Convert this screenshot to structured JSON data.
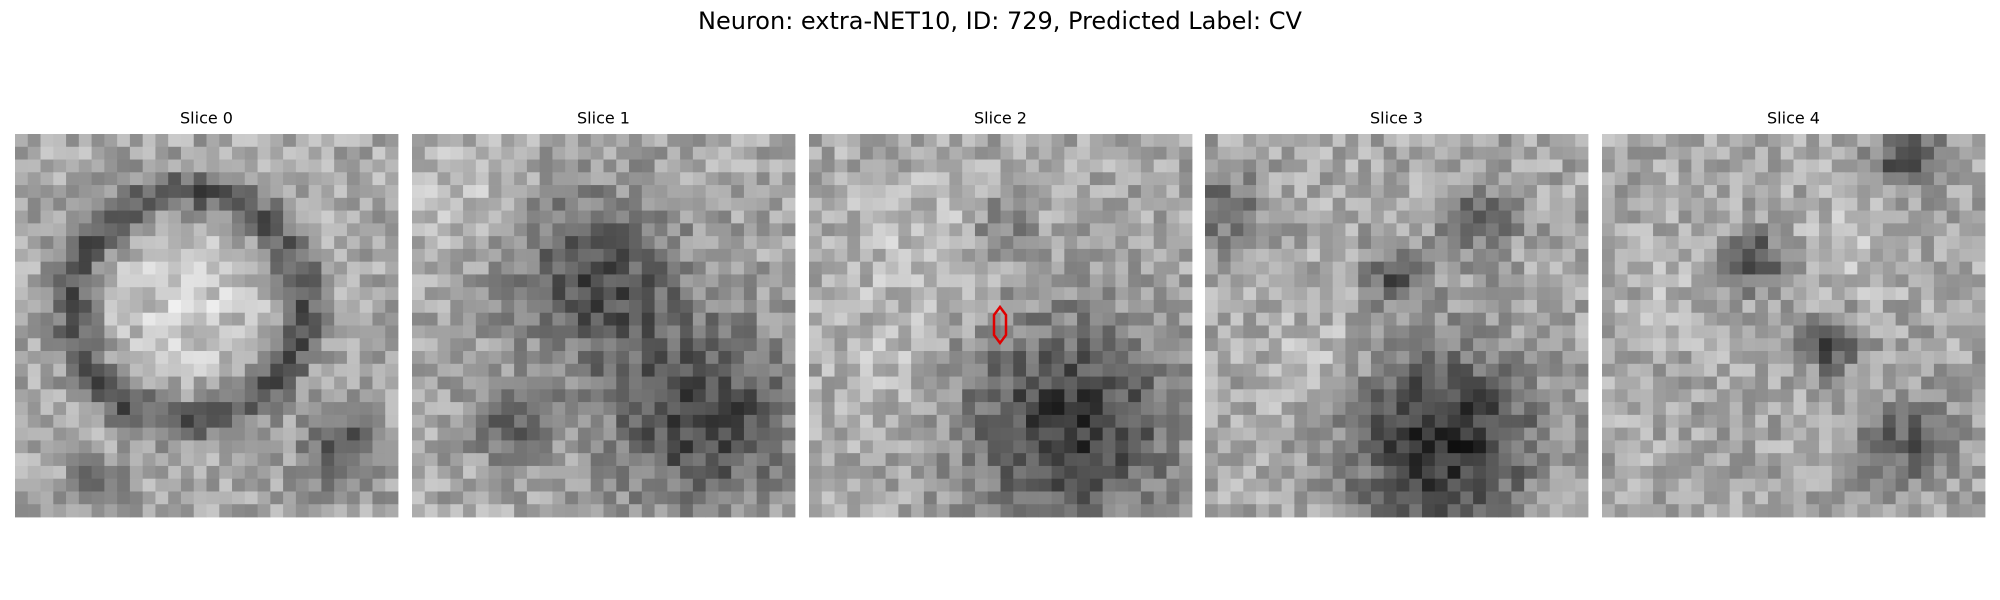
{
  "title": "Neuron: extra-NET10, ID: 729, Predicted Label: CV",
  "panels": [
    {
      "label": "Slice 0"
    },
    {
      "label": "Slice 1"
    },
    {
      "label": "Slice 2"
    },
    {
      "label": "Slice 3"
    },
    {
      "label": "Slice 4"
    }
  ]
}
